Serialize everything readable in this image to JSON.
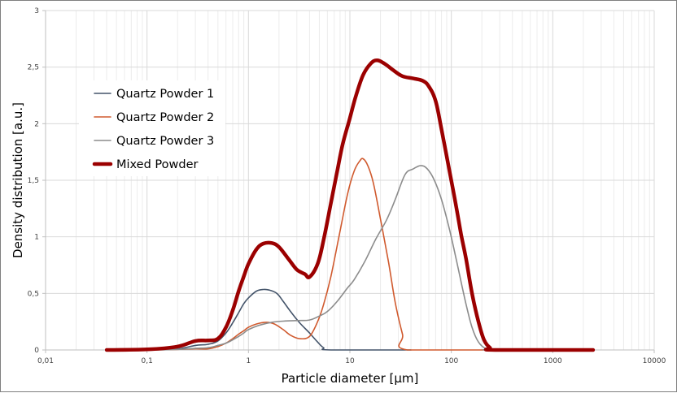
{
  "chart_data": {
    "type": "line",
    "title": "",
    "xlabel": "Particle diameter [µm]",
    "ylabel": "Density distribution [a.u.]",
    "xscale": "log",
    "xlim": [
      0.01,
      10000
    ],
    "ylim": [
      0,
      3
    ],
    "grid": true,
    "legend_position": "upper-left (inside plot)",
    "x_ticks": [
      "0,01",
      "0,1",
      "1",
      "10",
      "100",
      "1000",
      "10000"
    ],
    "y_ticks": [
      "0",
      "0,5",
      "1",
      "1,5",
      "2",
      "2,5",
      "3"
    ],
    "series": [
      {
        "name": "Quartz Powder 1",
        "color": "#44546a",
        "width": 1.6,
        "points": [
          [
            0.04,
            0
          ],
          [
            0.1,
            0
          ],
          [
            0.2,
            0.01
          ],
          [
            0.3,
            0.04
          ],
          [
            0.4,
            0.05
          ],
          [
            0.5,
            0.08
          ],
          [
            0.6,
            0.15
          ],
          [
            0.7,
            0.24
          ],
          [
            0.8,
            0.33
          ],
          [
            0.9,
            0.41
          ],
          [
            1.0,
            0.46
          ],
          [
            1.2,
            0.52
          ],
          [
            1.4,
            0.535
          ],
          [
            1.6,
            0.53
          ],
          [
            1.9,
            0.5
          ],
          [
            2.2,
            0.43
          ],
          [
            2.6,
            0.34
          ],
          [
            3.2,
            0.24
          ],
          [
            4.0,
            0.15
          ],
          [
            4.8,
            0.07
          ],
          [
            5.5,
            0.02
          ],
          [
            6.5,
            0.0
          ],
          [
            40,
            0
          ]
        ]
      },
      {
        "name": "Quartz Powder 2",
        "color": "#d05a2e",
        "width": 1.6,
        "points": [
          [
            0.04,
            0
          ],
          [
            0.1,
            0
          ],
          [
            0.2,
            0.005
          ],
          [
            0.3,
            0.01
          ],
          [
            0.4,
            0.01
          ],
          [
            0.5,
            0.03
          ],
          [
            0.6,
            0.06
          ],
          [
            0.7,
            0.1
          ],
          [
            0.8,
            0.14
          ],
          [
            0.9,
            0.17
          ],
          [
            1.0,
            0.2
          ],
          [
            1.2,
            0.23
          ],
          [
            1.5,
            0.245
          ],
          [
            1.8,
            0.23
          ],
          [
            2.2,
            0.18
          ],
          [
            2.6,
            0.13
          ],
          [
            3.2,
            0.1
          ],
          [
            4.0,
            0.12
          ],
          [
            4.8,
            0.25
          ],
          [
            5.5,
            0.4
          ],
          [
            6.5,
            0.65
          ],
          [
            8.0,
            1.05
          ],
          [
            9.5,
            1.38
          ],
          [
            11,
            1.58
          ],
          [
            12.5,
            1.67
          ],
          [
            13.5,
            1.69
          ],
          [
            15,
            1.63
          ],
          [
            17,
            1.48
          ],
          [
            20,
            1.16
          ],
          [
            24,
            0.78
          ],
          [
            28,
            0.42
          ],
          [
            33,
            0.14
          ],
          [
            37,
            0.0
          ],
          [
            300,
            0
          ],
          [
            2500,
            0
          ]
        ]
      },
      {
        "name": "Quartz Powder 3",
        "color": "#8c8c8c",
        "width": 1.6,
        "points": [
          [
            0.04,
            0
          ],
          [
            0.1,
            0
          ],
          [
            0.2,
            0.005
          ],
          [
            0.3,
            0.015
          ],
          [
            0.4,
            0.02
          ],
          [
            0.5,
            0.04
          ],
          [
            0.6,
            0.06
          ],
          [
            0.7,
            0.09
          ],
          [
            0.8,
            0.12
          ],
          [
            0.9,
            0.15
          ],
          [
            1.0,
            0.18
          ],
          [
            1.3,
            0.22
          ],
          [
            1.7,
            0.245
          ],
          [
            2.2,
            0.255
          ],
          [
            3.0,
            0.26
          ],
          [
            4.0,
            0.265
          ],
          [
            5.0,
            0.3
          ],
          [
            6.0,
            0.34
          ],
          [
            7.5,
            0.43
          ],
          [
            9.5,
            0.55
          ],
          [
            11,
            0.62
          ],
          [
            14,
            0.78
          ],
          [
            18,
            0.98
          ],
          [
            23,
            1.15
          ],
          [
            28,
            1.33
          ],
          [
            35,
            1.55
          ],
          [
            42,
            1.6
          ],
          [
            50,
            1.63
          ],
          [
            58,
            1.6
          ],
          [
            68,
            1.5
          ],
          [
            80,
            1.33
          ],
          [
            95,
            1.08
          ],
          [
            110,
            0.83
          ],
          [
            125,
            0.6
          ],
          [
            140,
            0.4
          ],
          [
            160,
            0.2
          ],
          [
            185,
            0.07
          ],
          [
            220,
            0.01
          ],
          [
            260,
            0
          ],
          [
            2500,
            0
          ]
        ]
      },
      {
        "name": "Mixed Powder",
        "color": "#9b0000",
        "width": 4.5,
        "points": [
          [
            0.04,
            0
          ],
          [
            0.1,
            0.005
          ],
          [
            0.2,
            0.03
          ],
          [
            0.3,
            0.08
          ],
          [
            0.4,
            0.085
          ],
          [
            0.5,
            0.1
          ],
          [
            0.6,
            0.2
          ],
          [
            0.7,
            0.35
          ],
          [
            0.8,
            0.52
          ],
          [
            0.9,
            0.65
          ],
          [
            1.0,
            0.76
          ],
          [
            1.2,
            0.89
          ],
          [
            1.4,
            0.94
          ],
          [
            1.7,
            0.945
          ],
          [
            2.0,
            0.91
          ],
          [
            2.5,
            0.8
          ],
          [
            3.0,
            0.71
          ],
          [
            3.6,
            0.67
          ],
          [
            4.0,
            0.645
          ],
          [
            4.8,
            0.76
          ],
          [
            5.5,
            0.97
          ],
          [
            6.5,
            1.3
          ],
          [
            7.5,
            1.58
          ],
          [
            8.5,
            1.82
          ],
          [
            10,
            2.05
          ],
          [
            11.5,
            2.25
          ],
          [
            13.5,
            2.43
          ],
          [
            16,
            2.53
          ],
          [
            18.5,
            2.56
          ],
          [
            22,
            2.53
          ],
          [
            27,
            2.47
          ],
          [
            33,
            2.42
          ],
          [
            42,
            2.4
          ],
          [
            52,
            2.38
          ],
          [
            60,
            2.33
          ],
          [
            70,
            2.2
          ],
          [
            80,
            1.95
          ],
          [
            95,
            1.6
          ],
          [
            110,
            1.3
          ],
          [
            125,
            1.02
          ],
          [
            140,
            0.8
          ],
          [
            160,
            0.5
          ],
          [
            185,
            0.25
          ],
          [
            210,
            0.09
          ],
          [
            240,
            0.02
          ],
          [
            270,
            0
          ],
          [
            2500,
            0
          ]
        ]
      }
    ]
  },
  "legend": {
    "items": [
      {
        "label": "Quartz Powder 1",
        "color": "#44546a"
      },
      {
        "label": "Quartz Powder 2",
        "color": "#d05a2e"
      },
      {
        "label": "Quartz Powder 3",
        "color": "#8c8c8c"
      },
      {
        "label": "Mixed Powder",
        "color": "#9b0000"
      }
    ]
  },
  "axes": {
    "xlabel": "Particle diameter [µm]",
    "ylabel": "Density distribution [a.u.]"
  }
}
